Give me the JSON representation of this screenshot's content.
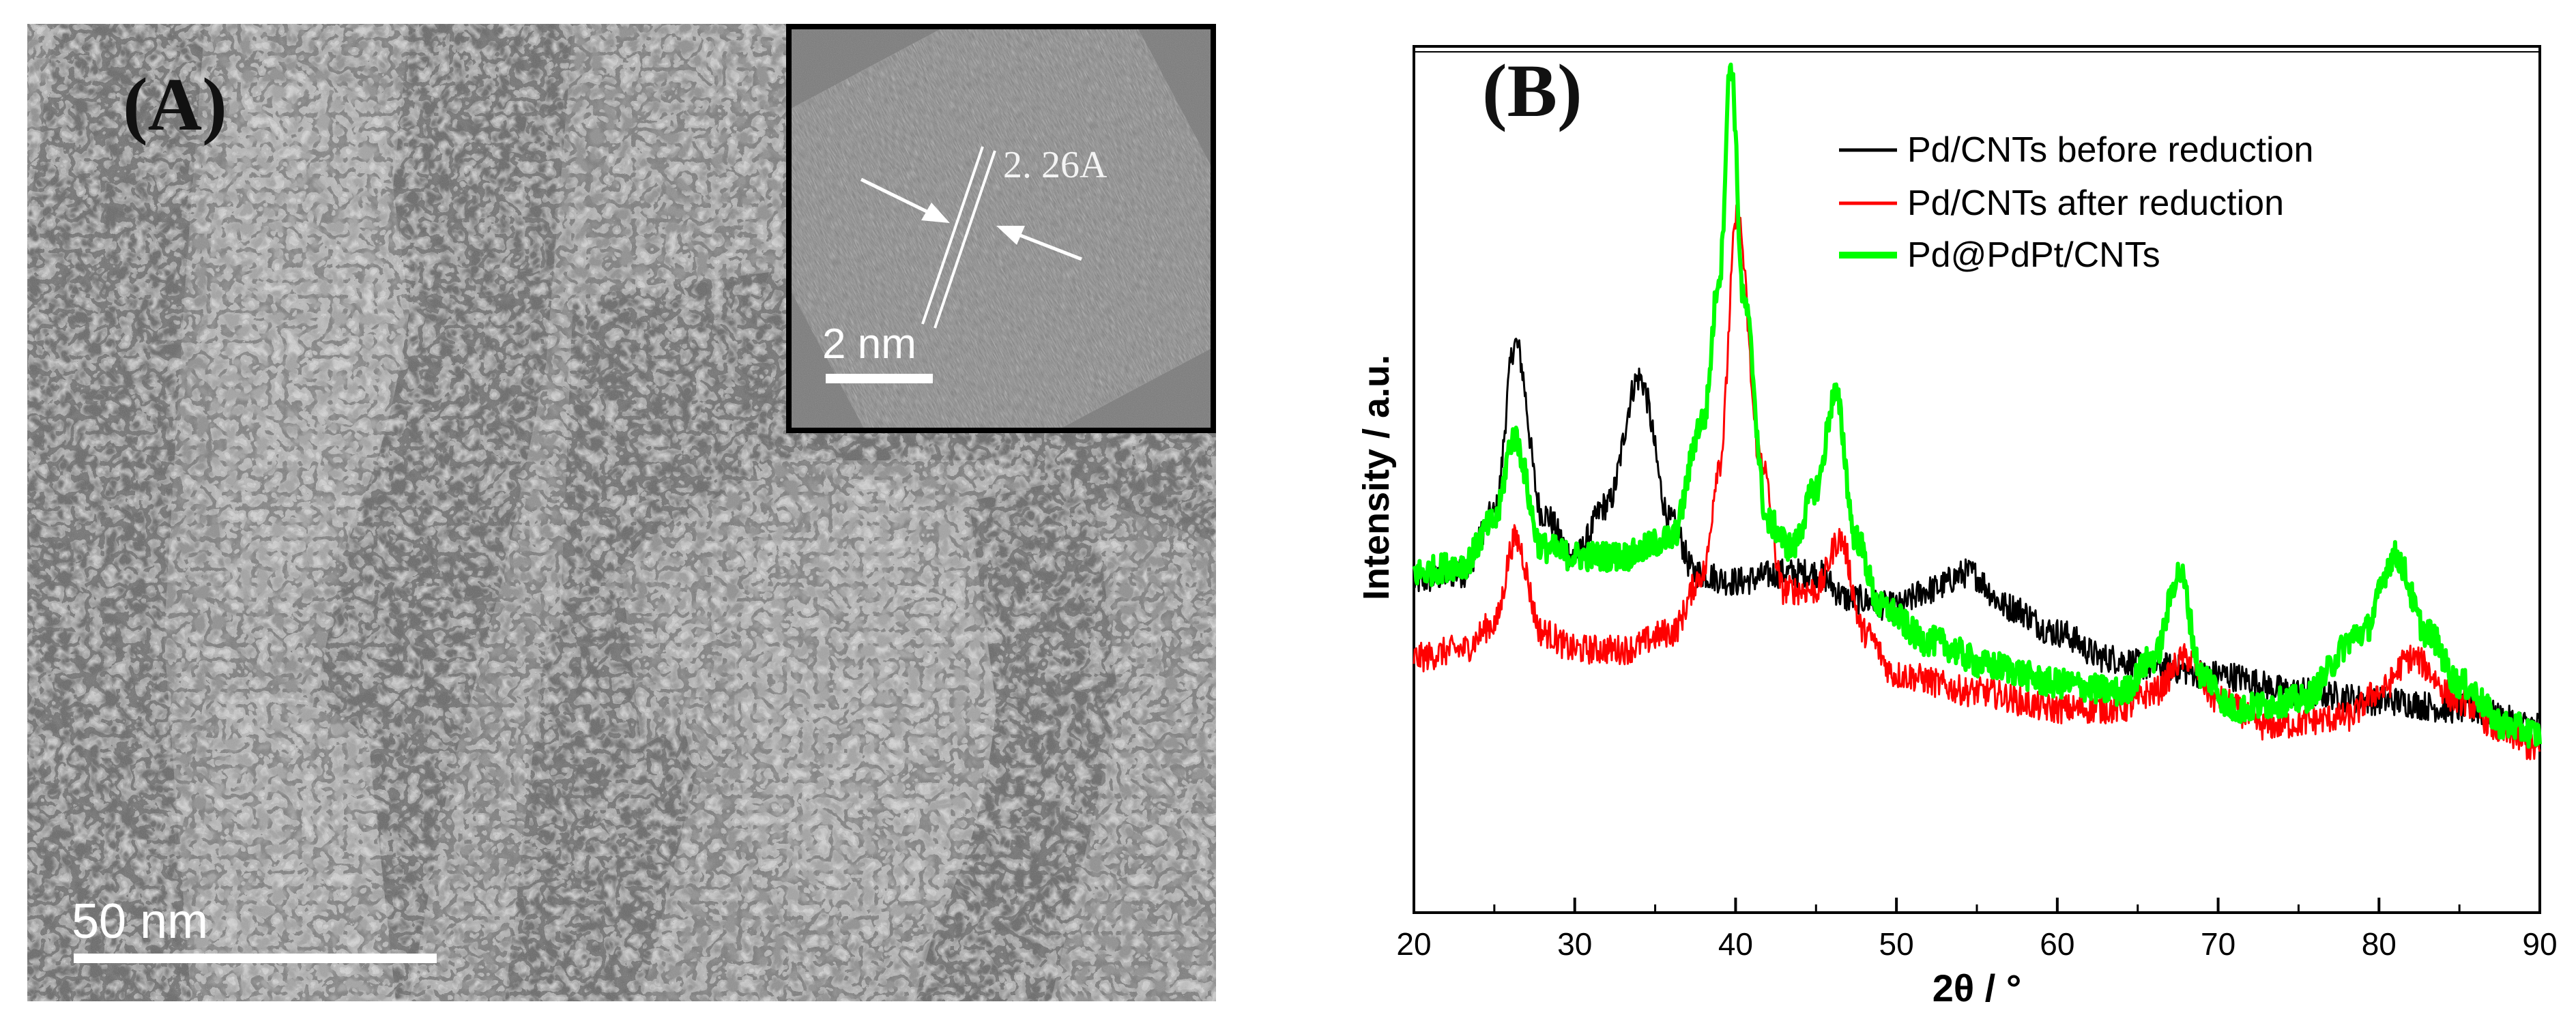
{
  "panel_a": {
    "label": "(A)",
    "scale_bar_label": "50 nm",
    "inset": {
      "scale_bar_label": "2 nm",
      "lattice_label": "2. 26A"
    }
  },
  "panel_b": {
    "label": "(B)"
  },
  "chart_data": {
    "type": "line",
    "title": "",
    "xlabel": "2θ / °",
    "ylabel": "Intensity / a.u.",
    "xlim": [
      20,
      90
    ],
    "x_ticks": [
      "20",
      "30",
      "40",
      "50",
      "60",
      "70",
      "80",
      "90"
    ],
    "grid": false,
    "legend_position": "top-right",
    "series": [
      {
        "name": "Pd/CNTs before reduction",
        "color": "#000000",
        "x": [
          20,
          23,
          25,
          26.3,
          28,
          30,
          32,
          34,
          36,
          37.5,
          40,
          43,
          45,
          47,
          50,
          52,
          54.5,
          57,
          60,
          63,
          66,
          70,
          75,
          80,
          85,
          90
        ],
        "y": [
          0.39,
          0.4,
          0.47,
          0.67,
          0.47,
          0.42,
          0.48,
          0.63,
          0.46,
          0.4,
          0.39,
          0.4,
          0.4,
          0.37,
          0.36,
          0.38,
          0.4,
          0.36,
          0.33,
          0.3,
          0.29,
          0.28,
          0.26,
          0.25,
          0.24,
          0.22
        ]
      },
      {
        "name": "Pd/CNTs after reduction",
        "color": "#ff0000",
        "x": [
          20,
          23,
          25,
          26.3,
          28,
          30,
          33,
          36,
          38,
          39,
          40.1,
          41.5,
          43,
          45,
          46.5,
          48,
          50,
          55,
          60,
          64,
          66,
          68,
          70,
          73,
          78,
          80,
          82,
          85,
          88,
          90
        ],
        "y": [
          0.3,
          0.31,
          0.34,
          0.44,
          0.33,
          0.31,
          0.31,
          0.33,
          0.4,
          0.53,
          0.82,
          0.54,
          0.38,
          0.38,
          0.44,
          0.33,
          0.28,
          0.26,
          0.24,
          0.24,
          0.26,
          0.3,
          0.25,
          0.22,
          0.23,
          0.26,
          0.3,
          0.25,
          0.21,
          0.19
        ]
      },
      {
        "name": "Pd@PdPt/CNTs",
        "color": "#00ff00",
        "x": [
          20,
          23,
          25,
          26.2,
          28,
          30,
          33,
          36,
          38,
          39,
          39.7,
          40.5,
          42,
          43.5,
          45,
          46.2,
          47.5,
          49,
          52,
          56,
          60,
          64,
          66,
          67.6,
          69,
          71,
          75,
          79,
          81,
          83,
          85,
          88,
          90
        ],
        "y": [
          0.4,
          0.41,
          0.46,
          0.56,
          0.43,
          0.42,
          0.42,
          0.44,
          0.58,
          0.75,
          1.0,
          0.72,
          0.46,
          0.43,
          0.5,
          0.61,
          0.44,
          0.36,
          0.32,
          0.29,
          0.27,
          0.26,
          0.3,
          0.4,
          0.28,
          0.24,
          0.25,
          0.33,
          0.42,
          0.33,
          0.27,
          0.22,
          0.21
        ]
      }
    ]
  }
}
